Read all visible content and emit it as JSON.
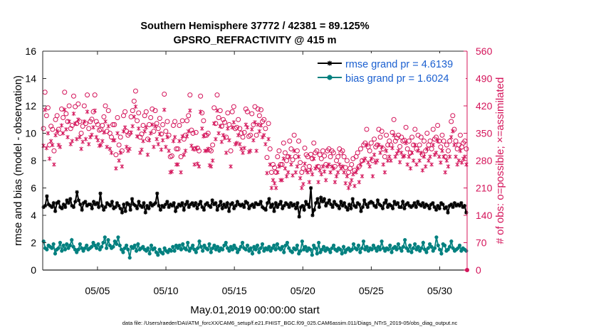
{
  "chart_data": {
    "type": "line",
    "title": "Southern Hemisphere 37772 / 42381 = 89.125%",
    "subtitle": "GPSRO_REFRACTIVITY @ 415 m",
    "xlabel": "May.01,2019 00:00:00 start",
    "ylabel_left": "rmse and bias (model - observation)",
    "ylabel_right": "# of obs: o=possible; ×=assimilated",
    "footer": "data file: /Users/raeder/DAI/ATM_forcXX/CAM6_setup/f.e21.FHIST_BGC.f09_025.CAM6assim.011/Diags_NTrS_2019-05/obs_diag_output.nc",
    "xlim": [
      1,
      32
    ],
    "x_ticks": [
      5,
      10,
      15,
      20,
      25,
      30
    ],
    "x_tick_labels": [
      "05/05",
      "05/10",
      "05/15",
      "05/20",
      "05/25",
      "05/30"
    ],
    "ylim_left": [
      0,
      16
    ],
    "y_ticks_left": [
      0,
      2,
      4,
      6,
      8,
      10,
      12,
      14,
      16
    ],
    "ylim_right": [
      0,
      560
    ],
    "y_ticks_right": [
      0,
      70,
      140,
      210,
      280,
      350,
      420,
      490,
      560
    ],
    "grid": false,
    "legend_position": "top-right",
    "colors": {
      "rmse": "#000000",
      "bias": "#00807f",
      "obs": "#d4145a",
      "legend_text": "#1a5fd0",
      "zero_line": "#c0c0c0"
    },
    "series": [
      {
        "name": "rmse grand pr = 4.6139",
        "axis": "left",
        "marker": "star",
        "values": [
          4.6,
          4.7,
          5.4,
          4.8,
          4.7,
          4.6,
          4.9,
          4.3,
          4.9,
          5.0,
          4.6,
          4.5,
          4.8,
          4.6,
          5.1,
          4.9,
          5.2,
          4.7,
          4.6,
          5.0,
          5.7,
          5.1,
          4.8,
          4.4,
          4.9,
          5.0,
          4.7,
          4.8,
          4.8,
          4.5,
          5.0,
          4.8,
          4.9,
          4.6,
          5.6,
          4.7,
          4.4,
          4.6,
          4.9,
          4.8,
          4.7,
          5.0,
          4.5,
          4.6,
          4.9,
          4.7,
          4.5,
          4.2,
          4.8,
          4.3,
          4.9,
          4.8,
          4.4,
          5.2,
          4.8,
          4.7,
          4.5,
          5.0,
          4.7,
          4.6,
          4.9,
          4.2,
          4.7,
          4.5,
          4.9,
          4.7,
          4.8,
          4.9,
          5.6,
          4.7,
          4.4,
          4.7,
          4.6,
          4.8,
          5.0,
          4.6,
          4.8,
          4.7,
          4.9,
          4.3,
          4.6,
          4.8,
          4.7,
          4.9,
          4.4,
          4.8,
          5.0,
          4.6,
          4.8,
          4.9,
          4.7,
          4.9,
          4.5,
          4.8,
          5.0,
          4.6,
          4.4,
          4.8,
          4.9,
          4.7,
          4.6,
          5.1,
          4.8,
          4.9,
          4.4,
          4.7,
          5.0,
          4.5,
          4.8,
          4.6,
          4.9,
          4.3,
          4.8,
          4.9,
          4.5,
          4.7,
          5.0,
          4.8,
          4.7,
          4.8,
          4.6,
          5.0,
          4.9,
          4.5,
          4.7,
          4.8,
          4.6,
          4.9,
          4.8,
          4.8,
          5.0,
          4.6,
          4.5,
          4.4,
          4.9,
          5.2,
          4.6,
          4.8,
          4.3,
          4.9,
          4.6,
          4.8,
          5.0,
          4.5,
          4.7,
          4.9,
          4.8,
          4.6,
          4.9,
          4.7,
          4.8,
          4.5,
          4.9,
          3.9,
          4.6,
          4.7,
          4.4,
          5.0,
          4.8,
          4.6,
          6.0,
          4.0,
          4.4,
          4.9,
          5.2,
          4.6,
          5.3,
          5.0,
          5.2,
          4.7,
          4.9,
          5.1,
          4.8,
          4.6,
          5.0,
          4.8,
          4.7,
          4.5,
          5.0,
          4.7,
          4.9,
          4.6,
          4.4,
          4.8,
          4.5,
          5.2,
          4.7,
          4.6,
          4.9,
          4.8,
          4.3,
          4.6,
          5.1,
          4.8,
          4.6,
          4.9,
          5.0,
          4.9,
          4.7,
          4.6,
          5.1,
          4.8,
          4.7,
          4.5,
          4.9,
          5.1,
          4.6,
          4.8,
          4.7,
          4.5,
          5.0,
          4.8,
          4.9,
          4.6,
          4.6,
          5.0,
          4.5,
          4.8,
          4.9,
          4.7,
          4.6,
          4.7,
          4.9,
          4.6,
          5.0,
          4.8,
          4.7,
          4.9,
          4.6,
          4.8,
          4.7,
          4.5,
          4.8,
          4.9,
          4.6,
          4.4,
          4.7,
          4.5,
          4.9,
          4.8,
          4.5,
          4.6,
          4.2,
          4.7,
          4.8,
          4.6,
          4.9,
          4.7,
          4.8,
          4.7,
          4.9,
          4.6,
          4.7,
          4.2
        ]
      },
      {
        "name": "bias grand pr = 1.6024",
        "axis": "left",
        "marker": "circle",
        "values": [
          2.1,
          1.6,
          1.5,
          1.8,
          1.7,
          1.6,
          1.9,
          1.2,
          1.5,
          1.6,
          2.0,
          1.4,
          1.8,
          1.5,
          1.9,
          1.6,
          1.8,
          2.2,
          1.7,
          1.5,
          1.3,
          1.5,
          1.9,
          1.6,
          1.4,
          1.6,
          1.8,
          1.5,
          1.6,
          1.7,
          2.0,
          1.8,
          1.6,
          1.9,
          1.5,
          1.7,
          2.0,
          2.4,
          1.6,
          2.2,
          1.8,
          1.6,
          1.7,
          2.1,
          1.9,
          2.4,
          1.8,
          1.5,
          1.3,
          1.6,
          1.8,
          1.5,
          0.9,
          1.7,
          1.6,
          1.8,
          1.4,
          1.9,
          1.5,
          1.6,
          1.7,
          1.5,
          1.4,
          1.6,
          1.2,
          1.8,
          1.5,
          1.6,
          1.3,
          1.1,
          1.5,
          1.3,
          1.2,
          1.6,
          1.4,
          1.3,
          1.5,
          1.4,
          1.7,
          1.4,
          1.8,
          1.6,
          1.8,
          1.5,
          1.9,
          1.6,
          1.5,
          2.0,
          1.4,
          1.6,
          1.8,
          1.5,
          1.3,
          1.6,
          2.1,
          1.7,
          1.4,
          1.8,
          1.6,
          1.5,
          1.9,
          1.3,
          1.6,
          1.8,
          1.5,
          1.7,
          1.4,
          1.6,
          1.5,
          1.8,
          2.0,
          1.6,
          1.4,
          1.7,
          1.5,
          1.8,
          1.6,
          1.3,
          1.5,
          1.7,
          2.0,
          1.6,
          1.5,
          1.8,
          1.4,
          1.6,
          1.2,
          1.7,
          1.5,
          1.8,
          1.3,
          1.6,
          1.9,
          1.4,
          1.6,
          1.5,
          1.7,
          1.4,
          1.6,
          1.8,
          1.5,
          1.9,
          1.6,
          1.5,
          1.7,
          1.3,
          1.8,
          2.0,
          1.6,
          1.4,
          1.3,
          1.6,
          1.5,
          1.8,
          1.2,
          1.4,
          2.1,
          1.5,
          1.7,
          1.4,
          1.6,
          1.5,
          1.1,
          1.8,
          1.6,
          1.2,
          2.0,
          1.3,
          1.5,
          1.7,
          1.4,
          1.6,
          1.5,
          1.3,
          1.6,
          1.8,
          1.5,
          1.4,
          1.6,
          1.5,
          1.2,
          1.7,
          1.3,
          1.5,
          1.6,
          1.4,
          1.5,
          1.9,
          1.6,
          1.5,
          1.8,
          1.3,
          1.6,
          2.1,
          1.5,
          1.7,
          1.4,
          1.6,
          1.5,
          1.8,
          1.6,
          1.4,
          1.7,
          1.5,
          2.1,
          1.6,
          1.4,
          1.6,
          1.5,
          1.8,
          1.3,
          1.6,
          1.7,
          1.5,
          1.9,
          1.6,
          1.4,
          1.7,
          2.2,
          1.6,
          1.4,
          1.8,
          1.3,
          1.6,
          1.9,
          1.5,
          1.7,
          1.4,
          1.6,
          2.0,
          1.5,
          1.3,
          1.6,
          1.9,
          1.7,
          1.4,
          1.6,
          2.4,
          1.8,
          1.5,
          1.2,
          1.9,
          1.8,
          1.4,
          1.5,
          1.7,
          2.1,
          1.6,
          1.4,
          1.5,
          1.6,
          1.8,
          1.4,
          1.6,
          1.5,
          1.4
        ]
      },
      {
        "name": "possible",
        "axis": "right",
        "marker": "o",
        "values": [
          362,
          455,
          395,
          415,
          320,
          368,
          360,
          305,
          385,
          395,
          360,
          350,
          412,
          390,
          455,
          400,
          380,
          420,
          362,
          370,
          445,
          418,
          375,
          425,
          380,
          350,
          368,
          420,
          375,
          448,
          362,
          380,
          386,
          405,
          448,
          380,
          372,
          358,
          360,
          370,
          392,
          420,
          355,
          408,
          350,
          340,
          372,
          372,
          295,
          390,
          320,
          340,
          305,
          395,
          405,
          355,
          345,
          350,
          392,
          408,
          432,
          458,
          382,
          402,
          340,
          348,
          370,
          395,
          405,
          335,
          372,
          390,
          412,
          355,
          408,
          375,
          362,
          388,
          348,
          372,
          450,
          355,
          380,
          345,
          290,
          292,
          370,
          380,
          310,
          310,
          370,
          290,
          382,
          335,
          345,
          382,
          395,
          448,
          358,
          350,
          310,
          352,
          312,
          305,
          445,
          402,
          382,
          345,
          345,
          350,
          308,
          305,
          320,
          415,
          375,
          448,
          390,
          408,
          368,
          385,
          378,
          340,
          402,
          372,
          305,
          405,
          418,
          362,
          365,
          385,
          362,
          350,
          340,
          352,
          412,
          405,
          342,
          345,
          400,
          372,
          418,
          345,
          412,
          395,
          410,
          380,
          385,
          362,
          288,
          375,
          310,
          250,
          270,
          262,
          250,
          290,
          305,
          270,
          270,
          325,
          300,
          280,
          290,
          330,
          310,
          282,
          345,
          290,
          305,
          330,
          275,
          250,
          260,
          312,
          295,
          290,
          265,
          296,
          285,
          325,
          300,
          305,
          265,
          295,
          285,
          305,
          292,
          270,
          305,
          310,
          290,
          305,
          300,
          265,
          280,
          290,
          310,
          300,
          305,
          290,
          262,
          280,
          250,
          260,
          270,
          285,
          255,
          290,
          300,
          265,
          310,
          280,
          320,
          325,
          360,
          315,
          305,
          325,
          280,
          335,
          315,
          320,
          360,
          340,
          355,
          310,
          290,
          345,
          320,
          330,
          320,
          352,
          385,
          330,
          338,
          345,
          316,
          340,
          330,
          332,
          365,
          310,
          330,
          300,
          340,
          320,
          360,
          310,
          345,
          320,
          340,
          295,
          330,
          305,
          350,
          320,
          330,
          310,
          360,
          335,
          340,
          370,
          330,
          315,
          345,
          330,
          290,
          320,
          305,
          330,
          380,
          395,
          360,
          330,
          310,
          320,
          345,
          315,
          325,
          330,
          310
        ]
      },
      {
        "name": "assimilated",
        "axis": "right",
        "marker": "x",
        "values": [
          318,
          410,
          312,
          350,
          285,
          330,
          320,
          270,
          345,
          355,
          320,
          315,
          370,
          350,
          410,
          360,
          340,
          380,
          322,
          330,
          400,
          375,
          335,
          385,
          340,
          310,
          328,
          380,
          335,
          405,
          322,
          340,
          346,
          365,
          408,
          340,
          332,
          318,
          320,
          330,
          352,
          380,
          315,
          368,
          310,
          300,
          332,
          332,
          260,
          350,
          280,
          300,
          265,
          355,
          365,
          315,
          305,
          310,
          352,
          368,
          392,
          418,
          342,
          362,
          300,
          308,
          330,
          355,
          365,
          295,
          332,
          350,
          372,
          315,
          368,
          335,
          322,
          348,
          308,
          332,
          410,
          315,
          340,
          305,
          250,
          252,
          330,
          340,
          270,
          270,
          330,
          250,
          342,
          295,
          305,
          342,
          355,
          408,
          318,
          310,
          270,
          312,
          272,
          265,
          405,
          362,
          342,
          305,
          305,
          310,
          268,
          265,
          280,
          375,
          335,
          408,
          350,
          368,
          328,
          345,
          338,
          300,
          362,
          332,
          265,
          365,
          378,
          322,
          325,
          345,
          322,
          310,
          300,
          312,
          372,
          365,
          302,
          305,
          360,
          332,
          378,
          305,
          372,
          355,
          370,
          340,
          345,
          322,
          248,
          335,
          270,
          210,
          230,
          222,
          210,
          250,
          265,
          230,
          230,
          285,
          260,
          240,
          250,
          290,
          270,
          242,
          305,
          250,
          265,
          290,
          235,
          210,
          220,
          272,
          255,
          250,
          225,
          256,
          245,
          285,
          260,
          265,
          225,
          255,
          245,
          265,
          252,
          230,
          265,
          270,
          250,
          265,
          260,
          225,
          240,
          250,
          270,
          260,
          265,
          250,
          222,
          240,
          210,
          220,
          230,
          245,
          215,
          250,
          260,
          225,
          270,
          240,
          280,
          285,
          320,
          275,
          265,
          285,
          240,
          295,
          275,
          280,
          320,
          300,
          315,
          270,
          250,
          305,
          280,
          290,
          280,
          312,
          345,
          290,
          298,
          305,
          276,
          300,
          290,
          292,
          325,
          270,
          290,
          260,
          300,
          280,
          320,
          270,
          305,
          280,
          300,
          255,
          290,
          265,
          310,
          280,
          290,
          270,
          320,
          295,
          300,
          330,
          290,
          275,
          305,
          290,
          250,
          280,
          265,
          290,
          340,
          355,
          320,
          290,
          270,
          280,
          305,
          275,
          285,
          290,
          270
        ]
      }
    ]
  }
}
